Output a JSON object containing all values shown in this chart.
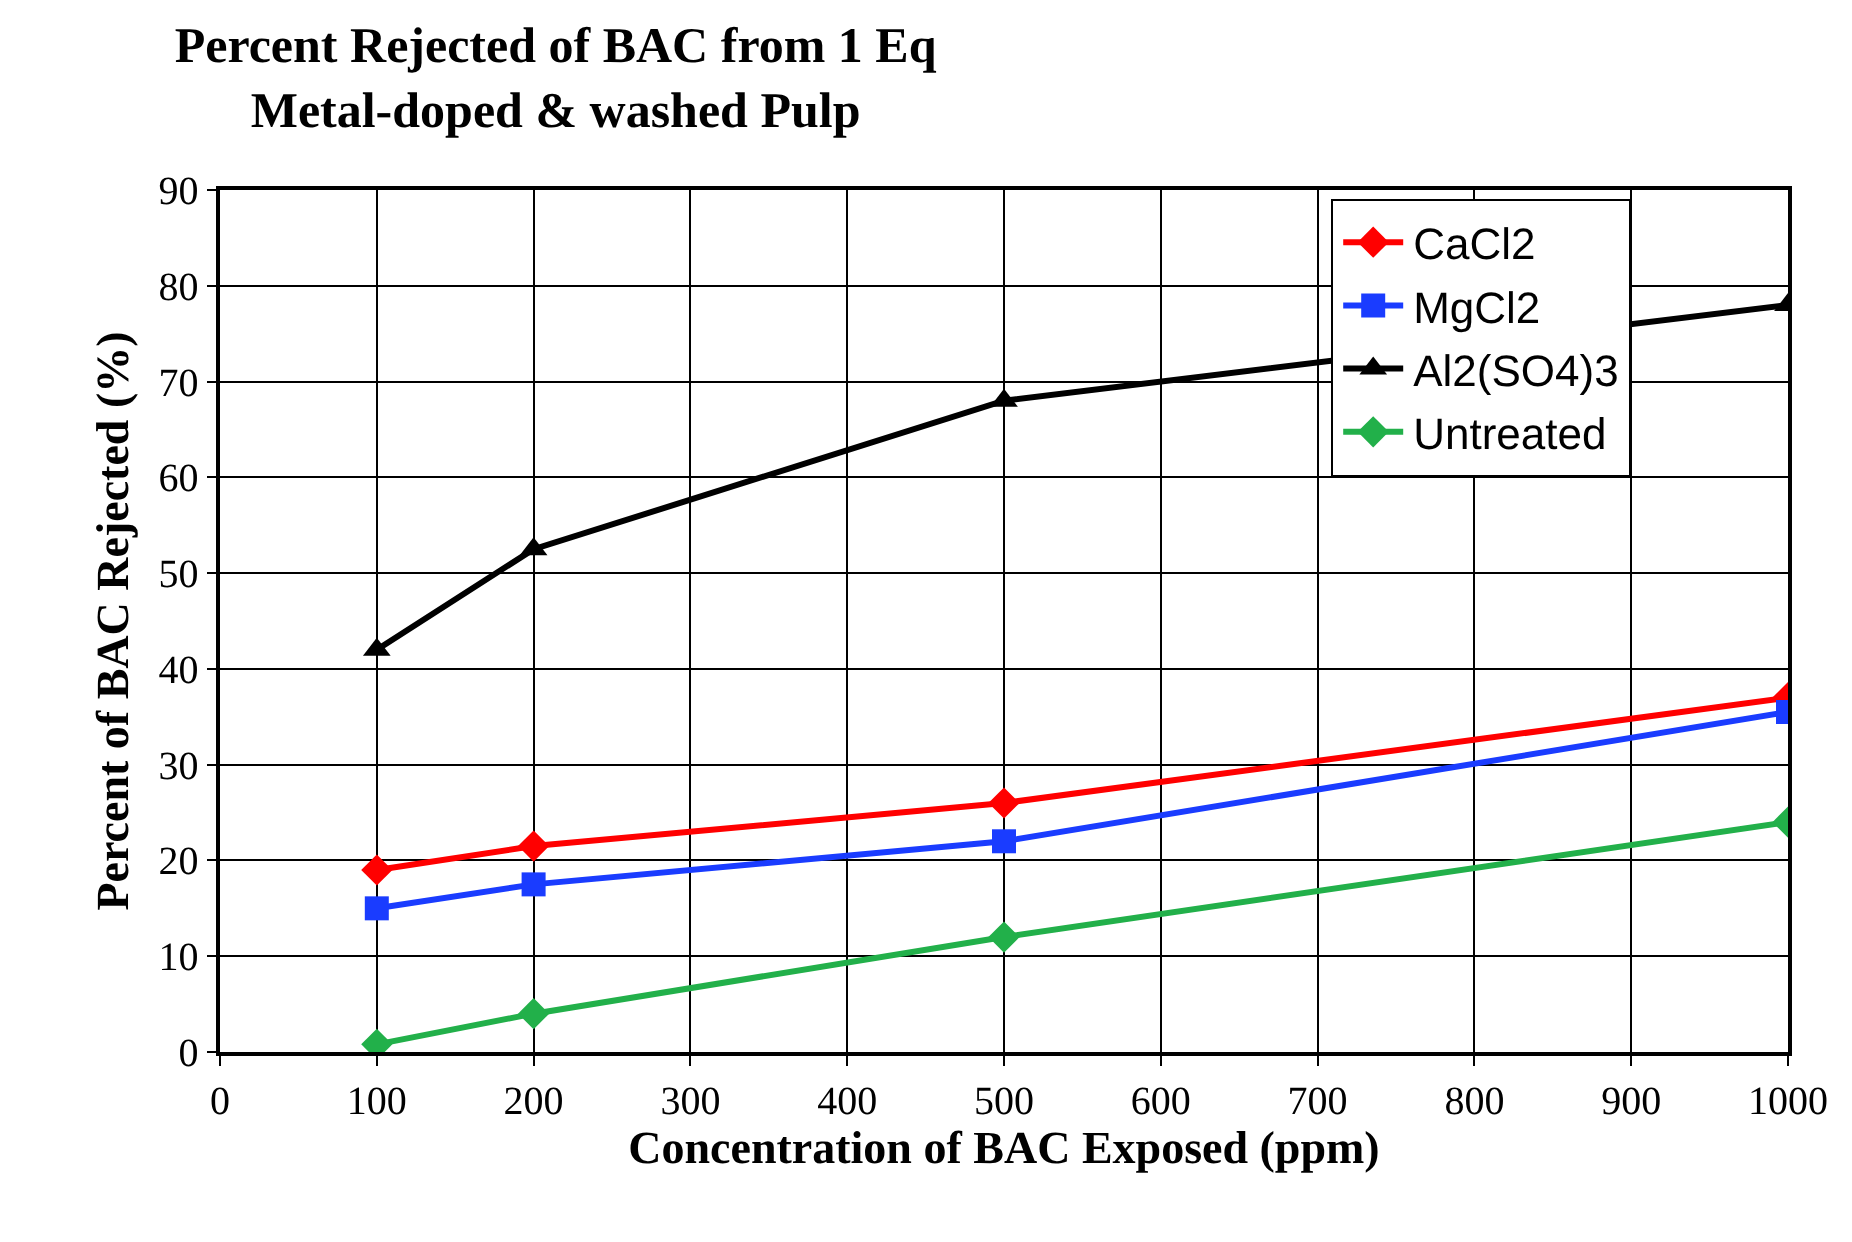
{
  "chart_data": {
    "type": "line",
    "title": "Percent Rejected of BAC from 1 Eq\nMetal-doped & washed Pulp",
    "xlabel": "Concentration of BAC Exposed (ppm)",
    "ylabel": "Percent of BAC Rejected (%)",
    "x": [
      100,
      200,
      500,
      1000
    ],
    "series": [
      {
        "name": "CaCl2",
        "color": "#ff0000",
        "marker": "diamond",
        "values": [
          19,
          21.5,
          26,
          37
        ]
      },
      {
        "name": "MgCl2",
        "color": "#1a3cff",
        "marker": "square",
        "values": [
          15,
          17.5,
          22,
          35.5
        ]
      },
      {
        "name": "Al2(SO4)3",
        "color": "#000000",
        "marker": "triangle",
        "values": [
          42,
          52.5,
          68,
          78
        ]
      },
      {
        "name": "Untreated",
        "color": "#22b04a",
        "marker": "diamond",
        "values": [
          0.8,
          4,
          12,
          24
        ]
      }
    ],
    "xlim": [
      0,
      1000
    ],
    "xticks": [
      0,
      100,
      200,
      300,
      400,
      500,
      600,
      700,
      800,
      900,
      1000
    ],
    "ylim": [
      0,
      90
    ],
    "yticks": [
      0,
      10,
      20,
      30,
      40,
      50,
      60,
      70,
      80,
      90
    ],
    "grid": true,
    "legend": "top right",
    "line_style": "solid"
  }
}
